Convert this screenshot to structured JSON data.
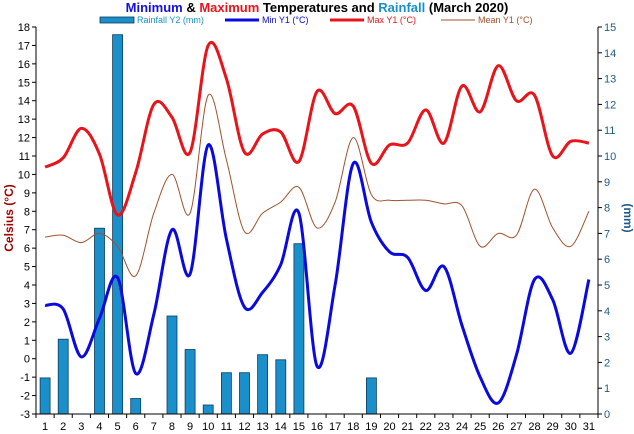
{
  "chart_data": {
    "type": "line",
    "title": {
      "part1": "Minimum",
      "part2": " & ",
      "part3": "Maximum",
      "part4": " Temperatures and ",
      "part5": "Rainfall",
      "part6": " (March 2020)"
    },
    "ylabel": "Celsius (°C)",
    "y2label": "(mm)",
    "x": [
      1,
      2,
      3,
      4,
      5,
      6,
      7,
      8,
      9,
      10,
      11,
      12,
      13,
      14,
      15,
      16,
      17,
      18,
      19,
      20,
      21,
      22,
      23,
      24,
      25,
      26,
      27,
      28,
      29,
      30,
      31
    ],
    "ylim": [
      -3,
      18
    ],
    "y2lim": [
      0,
      15
    ],
    "yticks": [
      -3,
      -2,
      -1,
      0,
      1,
      2,
      3,
      4,
      5,
      6,
      7,
      8,
      9,
      10,
      11,
      12,
      13,
      14,
      15,
      16,
      17,
      18
    ],
    "y2ticks": [
      0,
      1,
      2,
      3,
      4,
      5,
      6,
      7,
      8,
      9,
      10,
      11,
      12,
      13,
      14,
      15
    ],
    "grid": false,
    "legend_position": "top",
    "series": [
      {
        "name": "Rainfall Y2 (mm)",
        "kind": "bar",
        "axis": "y2",
        "color": "#1a8fc9",
        "values": [
          1.4,
          2.9,
          0,
          7.2,
          14.7,
          0.6,
          0,
          3.8,
          2.5,
          0.35,
          1.6,
          1.6,
          2.3,
          2.1,
          6.6,
          0,
          0,
          0,
          1.4,
          0,
          0,
          0,
          0,
          0,
          0,
          0,
          0,
          0,
          0,
          0,
          0
        ]
      },
      {
        "name": "Min Y1 (°C)",
        "kind": "line",
        "axis": "y1",
        "color": "#0a0ae0",
        "values": [
          2.9,
          2.7,
          0.1,
          2.2,
          4.4,
          -0.8,
          2.4,
          7.0,
          4.6,
          11.6,
          6.5,
          2.8,
          3.6,
          5.1,
          7.9,
          -0.4,
          4.0,
          10.6,
          7.4,
          5.8,
          5.5,
          3.7,
          5.0,
          1.8,
          -1.0,
          -2.4,
          0.2,
          4.3,
          3.2,
          0.3,
          4.3
        ]
      },
      {
        "name": "Max Y1 (°C)",
        "kind": "line",
        "axis": "y1",
        "color": "#e8141a",
        "values": [
          10.4,
          10.9,
          12.5,
          11.1,
          7.8,
          10.1,
          13.8,
          13.1,
          11.2,
          17.0,
          15.2,
          11.2,
          12.2,
          12.3,
          10.7,
          14.5,
          13.3,
          13.7,
          10.6,
          11.6,
          11.7,
          13.5,
          11.7,
          14.8,
          13.4,
          15.9,
          14.0,
          14.3,
          11.0,
          11.8,
          11.7
        ]
      },
      {
        "name": "Mean Y1 (°C)",
        "kind": "line",
        "axis": "y1",
        "color": "#a0522d",
        "values": [
          6.6,
          6.7,
          6.3,
          6.8,
          6.1,
          4.5,
          7.9,
          10.0,
          7.9,
          14.3,
          10.8,
          6.9,
          7.9,
          8.5,
          9.3,
          7.1,
          8.5,
          12.0,
          8.9,
          8.6,
          8.6,
          8.6,
          8.4,
          8.3,
          6.1,
          6.8,
          6.7,
          9.2,
          7.1,
          6.1,
          8.0
        ]
      }
    ]
  }
}
